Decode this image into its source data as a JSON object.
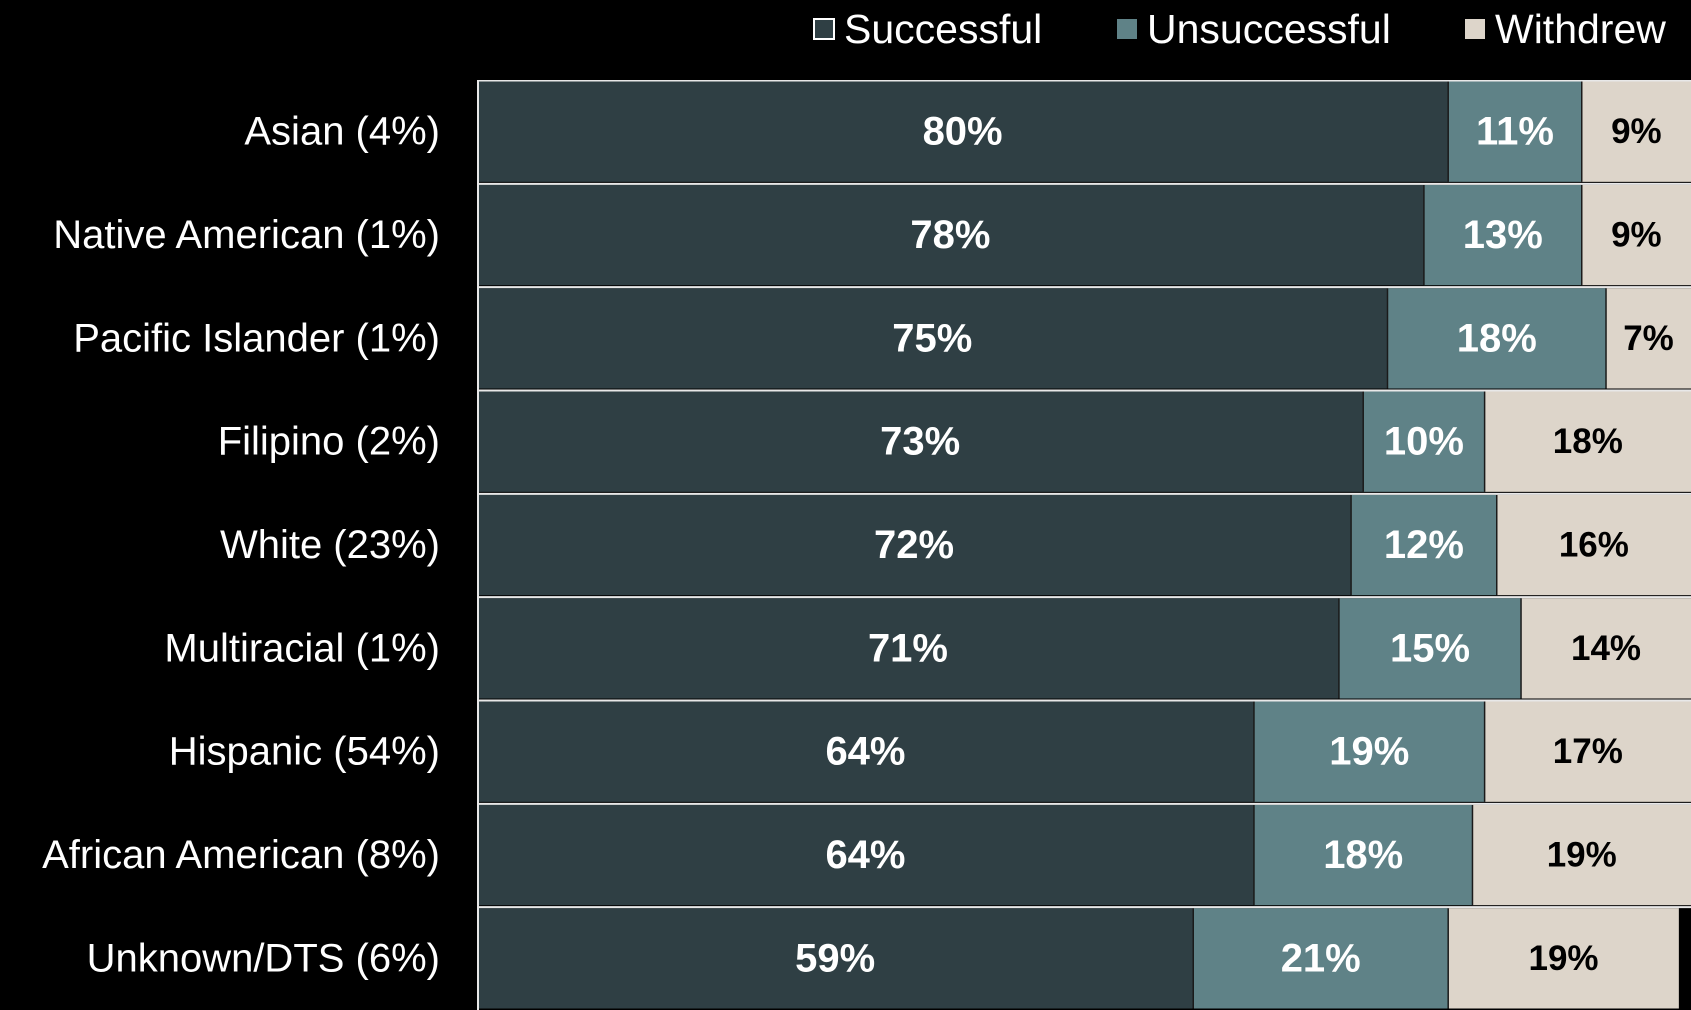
{
  "chart_data": {
    "type": "stacked_bar_horizontal",
    "categories": [
      "Asian (4%)",
      "Native American (1%)",
      "Pacific Islander (1%)",
      "Filipino (2%)",
      "White (23%)",
      "Multiracial (1%)",
      "Hispanic (54%)",
      "African American (8%)",
      "Unknown/DTS (6%)"
    ],
    "xlim": [
      0,
      100
    ],
    "legend": "top-right",
    "series": [
      {
        "name": "Successful",
        "color": "#2f3f44",
        "label_color": "#ffffff",
        "values": [
          80,
          78,
          75,
          73,
          72,
          71,
          64,
          64,
          59
        ],
        "value_labels": [
          "80%",
          "78%",
          "75%",
          "73%",
          "72%",
          "71%",
          "64%",
          "64%",
          "59%"
        ]
      },
      {
        "name": "Unsuccessful",
        "color": "#5f8287",
        "label_color": "#ffffff",
        "values": [
          11,
          13,
          18,
          10,
          12,
          15,
          19,
          18,
          21
        ],
        "value_labels": [
          "11%",
          "13%",
          "18%",
          "10%",
          "12%",
          "15%",
          "19%",
          "18%",
          "21%"
        ]
      },
      {
        "name": "Withdrew",
        "color": "#ddd5ca",
        "label_color": "#000000",
        "values": [
          9,
          9,
          7,
          18,
          16,
          14,
          17,
          19,
          19
        ],
        "value_labels": [
          "9%",
          "9%",
          "7%",
          "18%",
          "16%",
          "14%",
          "17%",
          "19%",
          "19%"
        ]
      }
    ]
  }
}
